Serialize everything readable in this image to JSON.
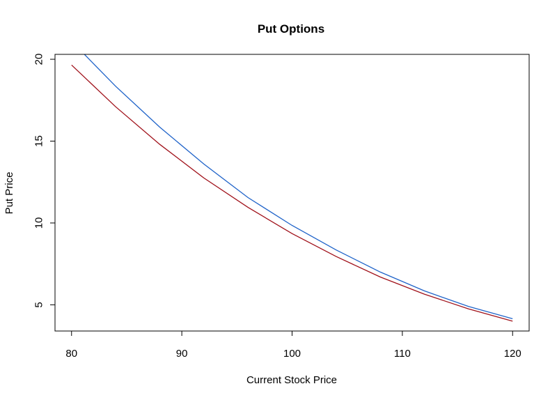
{
  "chart_data": {
    "type": "line",
    "title": "Put Options",
    "xlabel": "Current Stock Price",
    "ylabel": "Put Price",
    "xlim": [
      78.5,
      121.5
    ],
    "ylim": [
      3.4,
      20.3
    ],
    "xticks": [
      80,
      90,
      100,
      110,
      120
    ],
    "yticks": [
      5,
      10,
      15,
      20
    ],
    "grid": false,
    "series": [
      {
        "color": "#1f63c9",
        "x": [
          80,
          84,
          88,
          92,
          96,
          100,
          104,
          108,
          112,
          116,
          120
        ],
        "values": [
          21.1,
          18.35,
          15.85,
          13.6,
          11.55,
          9.85,
          8.35,
          7.0,
          5.85,
          4.9,
          4.15
        ]
      },
      {
        "color": "#a0111a",
        "x": [
          80,
          84,
          88,
          92,
          96,
          100,
          104,
          108,
          112,
          116,
          120
        ],
        "values": [
          19.65,
          17.1,
          14.8,
          12.75,
          10.95,
          9.35,
          7.95,
          6.7,
          5.65,
          4.75,
          4.0
        ]
      }
    ]
  }
}
